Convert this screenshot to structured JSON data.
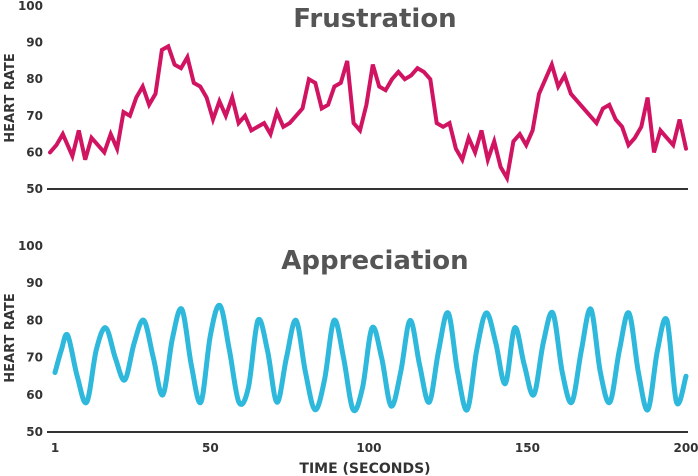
{
  "chart_data": [
    {
      "type": "line",
      "title": "Frustration",
      "ylabel": "HEART RATE",
      "xlabel": "",
      "ylim": [
        50,
        100
      ],
      "xlim": [
        1,
        200
      ],
      "yticks": [
        50,
        60,
        70,
        80,
        90,
        100
      ],
      "xticks": [],
      "color": "#d01462",
      "series": [
        {
          "x": [
            1,
            3,
            5,
            8,
            10,
            12,
            14,
            16,
            18,
            20,
            22,
            24,
            26,
            28,
            30,
            32,
            34,
            36,
            38,
            40,
            42,
            44,
            46,
            48,
            50,
            52,
            54,
            56,
            58,
            60,
            62,
            64,
            66,
            68,
            70,
            72,
            74,
            76,
            78,
            80,
            82,
            84,
            86,
            88,
            90,
            92,
            94,
            96,
            98,
            100,
            102,
            104,
            106,
            108,
            110,
            112,
            114,
            116,
            118,
            120,
            122,
            124,
            126,
            128,
            130,
            132,
            134,
            136,
            138,
            140,
            142,
            144,
            146,
            148,
            150,
            152,
            154,
            156,
            158,
            160,
            162,
            164,
            166,
            168,
            170,
            172,
            174,
            176,
            178,
            180,
            182,
            184,
            186,
            188,
            190,
            192,
            194,
            196,
            198,
            200
          ],
          "values": [
            60,
            62,
            65,
            59,
            66,
            58,
            64,
            62,
            60,
            65,
            61,
            71,
            70,
            75,
            78,
            73,
            76,
            88,
            89,
            84,
            83,
            86,
            79,
            78,
            75,
            69,
            74,
            70,
            75,
            68,
            70,
            66,
            67,
            68,
            65,
            71,
            67,
            68,
            70,
            72,
            80,
            79,
            72,
            73,
            78,
            79,
            85,
            68,
            66,
            73,
            84,
            78,
            77,
            80,
            82,
            80,
            81,
            83,
            82,
            80,
            68,
            67,
            68,
            61,
            58,
            64,
            60,
            66,
            58,
            63,
            56,
            53,
            63,
            65,
            62,
            66,
            76,
            80,
            84,
            78,
            81,
            76,
            74,
            72,
            70,
            68,
            72,
            73,
            69,
            67,
            62,
            64,
            67,
            75,
            60,
            66,
            64,
            62,
            69,
            61
          ]
        }
      ]
    },
    {
      "type": "line",
      "title": "Appreciation",
      "ylabel": "HEART RATE",
      "xlabel": "TIME (SECONDS)",
      "ylim": [
        50,
        100
      ],
      "xlim": [
        1,
        200
      ],
      "yticks": [
        50,
        60,
        70,
        80,
        90,
        100
      ],
      "xticks": [
        1,
        50,
        100,
        150,
        200
      ],
      "color": "#2db8dc",
      "series": [
        {
          "x": [
            1,
            3,
            5,
            8,
            11,
            14,
            17,
            20,
            23,
            26,
            29,
            32,
            35,
            38,
            41,
            44,
            47,
            50,
            53,
            56,
            59,
            62,
            65,
            68,
            71,
            74,
            77,
            80,
            83,
            86,
            89,
            92,
            95,
            98,
            101,
            104,
            107,
            110,
            113,
            116,
            119,
            122,
            125,
            128,
            131,
            134,
            137,
            140,
            143,
            146,
            149,
            152,
            155,
            158,
            161,
            164,
            167,
            170,
            173,
            176,
            179,
            182,
            185,
            188,
            191,
            194,
            197,
            200
          ],
          "values": [
            66,
            72,
            76,
            65,
            58,
            72,
            78,
            70,
            64,
            74,
            80,
            70,
            60,
            75,
            83,
            68,
            58,
            76,
            84,
            72,
            58,
            62,
            80,
            72,
            58,
            70,
            80,
            66,
            56,
            64,
            80,
            70,
            56,
            62,
            78,
            70,
            57,
            66,
            80,
            68,
            58,
            72,
            82,
            66,
            56,
            72,
            82,
            74,
            63,
            78,
            68,
            60,
            74,
            82,
            66,
            58,
            72,
            83,
            66,
            58,
            72,
            82,
            66,
            56,
            72,
            80,
            58,
            65
          ]
        }
      ]
    }
  ]
}
